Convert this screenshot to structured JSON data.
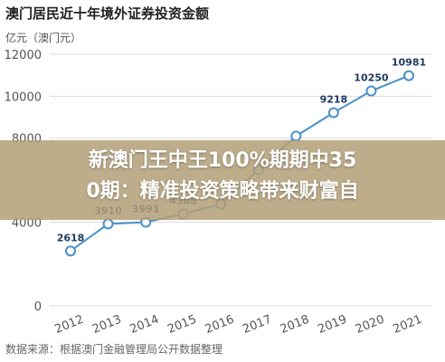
{
  "chart_data": {
    "type": "line",
    "title": "澳门居民近十年境外证券投资金额",
    "unit_label": "亿元（澳门元）",
    "source": "数据来源：根据澳门金融管理局公开数据整理",
    "x": [
      "2012",
      "2013",
      "2014",
      "2015",
      "2016",
      "2017",
      "2018",
      "2019",
      "2020",
      "2021"
    ],
    "y_ticks": [
      "0",
      "4000",
      "8000",
      "10000",
      "12000"
    ],
    "ylim": [
      0,
      12000
    ],
    "series": [
      {
        "points": [
          {
            "x": "2012",
            "y": 2618,
            "label": "2618"
          },
          {
            "x": "2013",
            "y": 3910,
            "label": "3910"
          },
          {
            "x": "2014",
            "y": 3991,
            "label": "3991"
          },
          {
            "x": "2015",
            "y": 4388,
            "label": "4388"
          },
          {
            "x": "2016",
            "y": 4850,
            "label": ""
          },
          {
            "x": "2017",
            "y": 6500,
            "label": ""
          },
          {
            "x": "2018",
            "y": 8100,
            "label": ""
          },
          {
            "x": "2019",
            "y": 9218,
            "label": "9218"
          },
          {
            "x": "2020",
            "y": 10250,
            "label": "10250"
          },
          {
            "x": "2021",
            "y": 10981,
            "label": "10981"
          }
        ]
      }
    ],
    "grid": true,
    "line_color": "#4a90c8",
    "marker_stroke": "#4a90c8",
    "marker_fill": "#ffffff"
  },
  "overlay": {
    "lines": [
      "新澳门王中王100%期期中35",
      "0期：精准投资策略带来财富自"
    ]
  }
}
